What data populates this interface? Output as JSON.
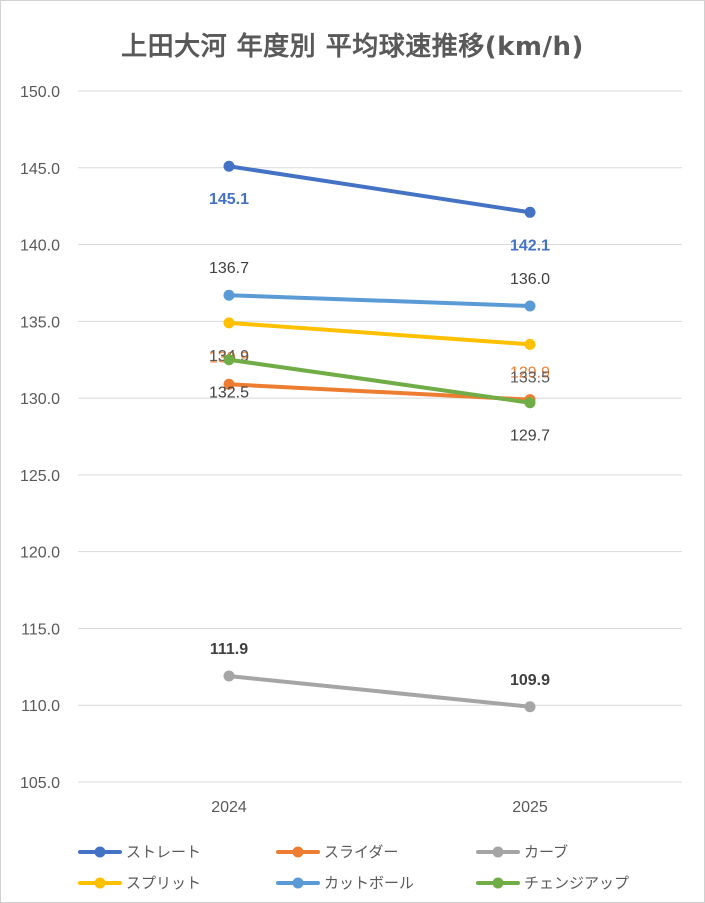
{
  "chart_data": {
    "type": "line",
    "title": "上田大河 年度別 平均球速推移(km/h)",
    "categories": [
      "2024",
      "2025"
    ],
    "ylim": [
      105.0,
      150.0
    ],
    "yticks": [
      "150.0",
      "145.0",
      "140.0",
      "135.0",
      "130.0",
      "125.0",
      "120.0",
      "115.0",
      "110.0",
      "105.0"
    ],
    "ytick_values": [
      150,
      145,
      140,
      135,
      130,
      125,
      120,
      115,
      110,
      105
    ],
    "grid": true,
    "legend_position": "bottom",
    "series": [
      {
        "name": "ストレート",
        "color": "#4472c4",
        "values": [
          145.1,
          142.1
        ],
        "labels": [
          "145.1",
          "142.1"
        ],
        "label_color": "#4472c4",
        "label_bold": true,
        "label_pos": "below"
      },
      {
        "name": "スライダー",
        "color": "#ed7d31",
        "values": [
          130.9,
          129.9
        ],
        "labels": [
          "130.9",
          "129.9"
        ],
        "label_color": "#ed7d31",
        "label_bold": false,
        "label_pos": "above"
      },
      {
        "name": "カーブ",
        "color": "#a5a5a5",
        "values": [
          111.9,
          109.9
        ],
        "labels": [
          "111.9",
          "109.9"
        ],
        "label_color": "#404040",
        "label_bold": true,
        "label_pos": "above"
      },
      {
        "name": "スプリット",
        "color": "#ffc000",
        "values": [
          134.9,
          133.5
        ],
        "labels": [
          "134.9",
          "133.5"
        ],
        "label_color": "#595959",
        "label_bold": false,
        "label_pos": "below"
      },
      {
        "name": "カットボール",
        "color": "#5b9bd5",
        "values": [
          136.7,
          136.0
        ],
        "labels": [
          "136.7",
          "136.0"
        ],
        "label_color": "#404040",
        "label_bold": false,
        "label_pos": "above"
      },
      {
        "name": "チェンジアップ",
        "color": "#70ad47",
        "values": [
          132.5,
          129.7
        ],
        "labels": [
          "132.5",
          "129.7"
        ],
        "label_color": "#404040",
        "label_bold": false,
        "label_pos": "below"
      }
    ]
  }
}
